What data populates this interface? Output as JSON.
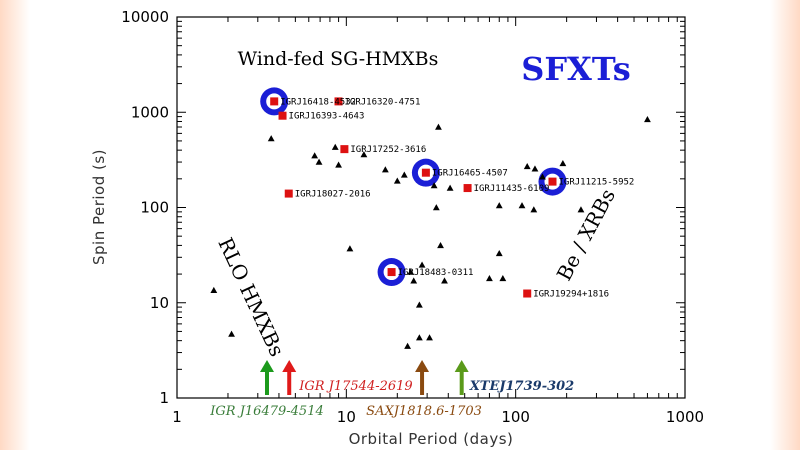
{
  "chart_data": {
    "type": "scatter",
    "title": "",
    "xlabel": "Orbital Period (days)",
    "ylabel": "Spin Period (s)",
    "xscale": "log",
    "yscale": "log",
    "xlim": [
      1,
      1000
    ],
    "ylim": [
      1,
      10000
    ],
    "xticks": [
      "1",
      "10",
      "100",
      "1000"
    ],
    "yticks": [
      "1",
      "10",
      "100",
      "1000",
      "10000"
    ],
    "colors": {
      "sgxb": "#dd1111",
      "sfxt_ring": "#1b1fd6",
      "background_point": "#000000"
    },
    "series": [
      {
        "marker": "square",
        "points": [
          {
            "x": 3.75,
            "y": 1300,
            "label": "IGRJ16418-4532",
            "highlight": true
          },
          {
            "x": 8.99,
            "y": 1300,
            "label": "IGRJ16320-4751"
          },
          {
            "x": 4.2,
            "y": 920,
            "label": "IGRJ16393-4643"
          },
          {
            "x": 9.74,
            "y": 410,
            "label": "IGRJ17252-3616"
          },
          {
            "x": 29.5,
            "y": 232,
            "label": "IGRJ16465-4507",
            "highlight": true
          },
          {
            "x": 165,
            "y": 187,
            "label": "IGRJ11215-5952",
            "highlight": true
          },
          {
            "x": 4.57,
            "y": 140,
            "label": "IGRJ18027-2016"
          },
          {
            "x": 52,
            "y": 160,
            "label": "IGRJ11435-6109"
          },
          {
            "x": 18.5,
            "y": 21,
            "label": "IGRJ18483-0311",
            "highlight": true
          },
          {
            "x": 117,
            "y": 12.5,
            "label": "IGRJ19294+1816"
          }
        ]
      },
      {
        "marker": "triangle",
        "points": [
          {
            "x": 3.6,
            "y": 530
          },
          {
            "x": 6.5,
            "y": 350
          },
          {
            "x": 6.9,
            "y": 300
          },
          {
            "x": 8.6,
            "y": 430
          },
          {
            "x": 12.7,
            "y": 360
          },
          {
            "x": 9.0,
            "y": 280
          },
          {
            "x": 17,
            "y": 250
          },
          {
            "x": 22,
            "y": 220
          },
          {
            "x": 20,
            "y": 190
          },
          {
            "x": 35,
            "y": 700
          },
          {
            "x": 33,
            "y": 170
          },
          {
            "x": 34,
            "y": 100
          },
          {
            "x": 41,
            "y": 160
          },
          {
            "x": 36,
            "y": 40
          },
          {
            "x": 10.5,
            "y": 37
          },
          {
            "x": 80,
            "y": 105
          },
          {
            "x": 109,
            "y": 105
          },
          {
            "x": 117,
            "y": 270
          },
          {
            "x": 128,
            "y": 95
          },
          {
            "x": 130,
            "y": 255
          },
          {
            "x": 144,
            "y": 210
          },
          {
            "x": 190,
            "y": 290
          },
          {
            "x": 243,
            "y": 95
          },
          {
            "x": 600,
            "y": 840
          },
          {
            "x": 80,
            "y": 33
          },
          {
            "x": 84,
            "y": 18
          },
          {
            "x": 1.65,
            "y": 13.5
          },
          {
            "x": 2.1,
            "y": 4.7
          },
          {
            "x": 24,
            "y": 21
          },
          {
            "x": 25,
            "y": 17
          },
          {
            "x": 28,
            "y": 25
          },
          {
            "x": 27,
            "y": 9.5
          },
          {
            "x": 23,
            "y": 3.5
          },
          {
            "x": 27,
            "y": 4.3
          },
          {
            "x": 31,
            "y": 4.3
          },
          {
            "x": 38,
            "y": 17
          },
          {
            "x": 70,
            "y": 18
          }
        ]
      }
    ],
    "annotations": {
      "wind_fed": "Wind-fed SG-HMXBs",
      "sfxts": "SFXTs",
      "rlo": "RLO HMXBs",
      "bexrb": "Be / XRBs"
    },
    "arrows": [
      {
        "x": 3.4,
        "label": "IGR J16479-4514",
        "color": "#1c9a1c",
        "label_color": "#3a7d3a"
      },
      {
        "x": 4.6,
        "label": "IGR J17544-2619",
        "color": "#e01a1a",
        "label_color": "#d02020"
      },
      {
        "x": 28.0,
        "label": "SAXJ1818.6-1703",
        "color": "#8a4a10",
        "label_color": "#8a4a10"
      },
      {
        "x": 48.0,
        "label": "XTEJ1739-302",
        "color": "#5a9a1a",
        "label_color": "#1a3a6a"
      }
    ]
  }
}
